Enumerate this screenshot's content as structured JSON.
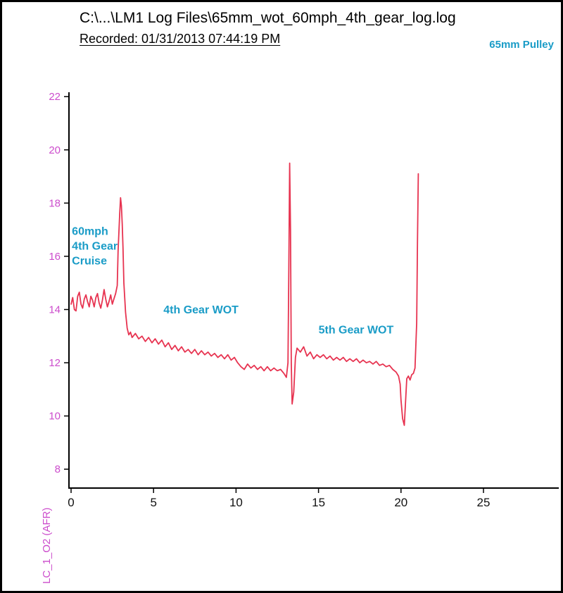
{
  "header": {
    "title": "C:\\...\\LM1 Log Files\\65mm_wot_60mph_4th_gear_log.log",
    "recorded": "Recorded: 01/31/2013 07:44:19 PM",
    "badge": "65mm Pulley"
  },
  "chart_data": {
    "type": "line",
    "title": "C:\\...\\LM1 Log Files\\65mm_wot_60mph_4th_gear_log.log",
    "subtitle": "Recorded: 01/31/2013 07:44:19 PM",
    "xlabel": "",
    "ylabel": "LC_1_O2 (AFR)",
    "xlim": [
      0,
      29.6
    ],
    "ylim": [
      8,
      22.2
    ],
    "grid": false,
    "legend": "none",
    "x_ticks": [
      0,
      5,
      10,
      15,
      20,
      25
    ],
    "y_ticks": [
      8,
      10,
      12,
      14,
      16,
      18,
      20,
      22
    ],
    "colors": {
      "line": "#e73350",
      "y_labels": "#cc4ccc",
      "x_labels": "#111111",
      "annotation": "#1a9cc7"
    },
    "annotations": [
      {
        "lines": [
          "60mph",
          "4th Gear",
          "Cruise"
        ],
        "x": 0.05,
        "y": 16.8
      },
      {
        "lines": [
          "4th Gear WOT"
        ],
        "x": 5.6,
        "y": 13.85
      },
      {
        "lines": [
          "5th Gear WOT"
        ],
        "x": 15.0,
        "y": 13.1
      }
    ],
    "series": [
      {
        "name": "LC_1_O2 (AFR)",
        "points": [
          [
            0,
            14.2
          ],
          [
            0.1,
            14.45
          ],
          [
            0.2,
            14.0
          ],
          [
            0.3,
            13.95
          ],
          [
            0.4,
            14.5
          ],
          [
            0.5,
            14.65
          ],
          [
            0.6,
            14.2
          ],
          [
            0.7,
            14.05
          ],
          [
            0.8,
            14.4
          ],
          [
            0.9,
            14.55
          ],
          [
            1.0,
            14.3
          ],
          [
            1.1,
            14.1
          ],
          [
            1.2,
            14.5
          ],
          [
            1.3,
            14.35
          ],
          [
            1.4,
            14.1
          ],
          [
            1.5,
            14.45
          ],
          [
            1.6,
            14.6
          ],
          [
            1.7,
            14.25
          ],
          [
            1.8,
            14.05
          ],
          [
            1.9,
            14.35
          ],
          [
            2.0,
            14.75
          ],
          [
            2.1,
            14.4
          ],
          [
            2.2,
            14.1
          ],
          [
            2.3,
            14.3
          ],
          [
            2.4,
            14.55
          ],
          [
            2.5,
            14.2
          ],
          [
            2.6,
            14.4
          ],
          [
            2.7,
            14.6
          ],
          [
            2.8,
            14.9
          ],
          [
            2.85,
            16.2
          ],
          [
            2.95,
            17.6
          ],
          [
            3.0,
            18.2
          ],
          [
            3.05,
            17.9
          ],
          [
            3.1,
            17.2
          ],
          [
            3.15,
            16.3
          ],
          [
            3.2,
            15.0
          ],
          [
            3.3,
            13.9
          ],
          [
            3.4,
            13.3
          ],
          [
            3.5,
            13.05
          ],
          [
            3.6,
            13.15
          ],
          [
            3.7,
            12.95
          ],
          [
            3.9,
            13.1
          ],
          [
            4.1,
            12.9
          ],
          [
            4.3,
            13.0
          ],
          [
            4.5,
            12.8
          ],
          [
            4.7,
            12.95
          ],
          [
            4.9,
            12.75
          ],
          [
            5.1,
            12.9
          ],
          [
            5.3,
            12.7
          ],
          [
            5.5,
            12.85
          ],
          [
            5.7,
            12.6
          ],
          [
            5.9,
            12.75
          ],
          [
            6.1,
            12.5
          ],
          [
            6.3,
            12.65
          ],
          [
            6.5,
            12.45
          ],
          [
            6.7,
            12.6
          ],
          [
            6.9,
            12.4
          ],
          [
            7.1,
            12.5
          ],
          [
            7.3,
            12.35
          ],
          [
            7.5,
            12.5
          ],
          [
            7.7,
            12.3
          ],
          [
            7.9,
            12.45
          ],
          [
            8.1,
            12.3
          ],
          [
            8.3,
            12.4
          ],
          [
            8.5,
            12.25
          ],
          [
            8.7,
            12.35
          ],
          [
            8.9,
            12.2
          ],
          [
            9.1,
            12.3
          ],
          [
            9.3,
            12.15
          ],
          [
            9.5,
            12.3
          ],
          [
            9.7,
            12.1
          ],
          [
            9.9,
            12.2
          ],
          [
            10.1,
            12.0
          ],
          [
            10.3,
            11.85
          ],
          [
            10.5,
            11.75
          ],
          [
            10.7,
            11.95
          ],
          [
            10.9,
            11.8
          ],
          [
            11.1,
            11.9
          ],
          [
            11.3,
            11.75
          ],
          [
            11.5,
            11.85
          ],
          [
            11.7,
            11.7
          ],
          [
            11.9,
            11.85
          ],
          [
            12.1,
            11.7
          ],
          [
            12.3,
            11.8
          ],
          [
            12.5,
            11.7
          ],
          [
            12.7,
            11.75
          ],
          [
            12.9,
            11.6
          ],
          [
            13.05,
            11.45
          ],
          [
            13.15,
            12.0
          ],
          [
            13.2,
            15.5
          ],
          [
            13.25,
            19.5
          ],
          [
            13.3,
            17.0
          ],
          [
            13.35,
            12.0
          ],
          [
            13.4,
            10.45
          ],
          [
            13.5,
            10.9
          ],
          [
            13.6,
            12.2
          ],
          [
            13.7,
            12.55
          ],
          [
            13.9,
            12.4
          ],
          [
            14.1,
            12.6
          ],
          [
            14.3,
            12.25
          ],
          [
            14.5,
            12.4
          ],
          [
            14.7,
            12.15
          ],
          [
            14.9,
            12.3
          ],
          [
            15.1,
            12.2
          ],
          [
            15.3,
            12.3
          ],
          [
            15.5,
            12.15
          ],
          [
            15.7,
            12.25
          ],
          [
            15.9,
            12.1
          ],
          [
            16.1,
            12.2
          ],
          [
            16.3,
            12.1
          ],
          [
            16.5,
            12.2
          ],
          [
            16.7,
            12.05
          ],
          [
            16.9,
            12.15
          ],
          [
            17.1,
            12.05
          ],
          [
            17.3,
            12.15
          ],
          [
            17.5,
            12.0
          ],
          [
            17.7,
            12.1
          ],
          [
            17.9,
            12.0
          ],
          [
            18.1,
            12.05
          ],
          [
            18.3,
            11.95
          ],
          [
            18.5,
            12.05
          ],
          [
            18.7,
            11.9
          ],
          [
            18.9,
            11.95
          ],
          [
            19.1,
            11.85
          ],
          [
            19.3,
            11.9
          ],
          [
            19.5,
            11.75
          ],
          [
            19.7,
            11.65
          ],
          [
            19.85,
            11.5
          ],
          [
            19.95,
            11.2
          ],
          [
            20.0,
            10.6
          ],
          [
            20.1,
            9.9
          ],
          [
            20.2,
            9.65
          ],
          [
            20.3,
            10.8
          ],
          [
            20.35,
            11.4
          ],
          [
            20.45,
            11.5
          ],
          [
            20.55,
            11.35
          ],
          [
            20.65,
            11.55
          ],
          [
            20.75,
            11.6
          ],
          [
            20.85,
            11.8
          ],
          [
            20.95,
            13.5
          ],
          [
            21.0,
            16.5
          ],
          [
            21.05,
            19.1
          ]
        ]
      }
    ]
  }
}
